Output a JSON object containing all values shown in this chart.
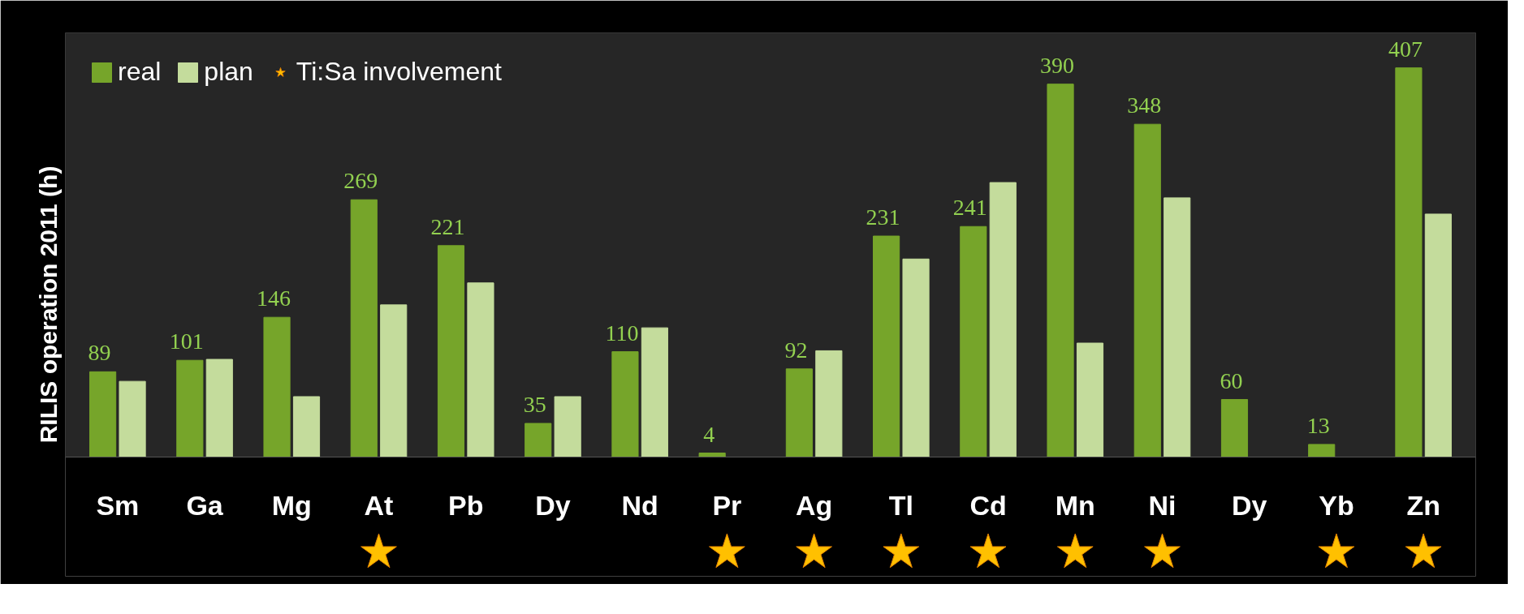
{
  "chart_data": {
    "type": "bar",
    "ylabel": "RILIS operation 2011 (h)",
    "categories": [
      "Sm",
      "Ga",
      "Mg",
      "At",
      "Pb",
      "Dy",
      "Nd",
      "Pr",
      "Ag",
      "Tl",
      "Cd",
      "Mn",
      "Ni",
      "Dy",
      "Yb",
      "Zn"
    ],
    "series": [
      {
        "name": "real",
        "color": "#76a52a",
        "values": [
          89,
          101,
          146,
          269,
          221,
          35,
          110,
          4,
          92,
          231,
          241,
          390,
          348,
          60,
          13,
          407
        ],
        "value_labels": [
          "89",
          "101",
          "146",
          "269",
          "221",
          "35",
          "110",
          "4",
          "92",
          "231",
          "241",
          "390",
          "348",
          "60",
          "13",
          "407"
        ]
      },
      {
        "name": "plan",
        "color": "#c4dc9c",
        "values": [
          79,
          102,
          63,
          159,
          182,
          63,
          135,
          null,
          111,
          207,
          287,
          119,
          271,
          null,
          null,
          254
        ]
      },
      {
        "name": "Ti:Sa involvement",
        "type": "scatter",
        "marker": "star",
        "color": "#ffc000",
        "values": [
          null,
          null,
          null,
          -100,
          null,
          null,
          null,
          -100,
          -100,
          -100,
          -100,
          -100,
          -100,
          null,
          -100,
          -100
        ]
      }
    ],
    "legend": "top left",
    "grid": false
  }
}
